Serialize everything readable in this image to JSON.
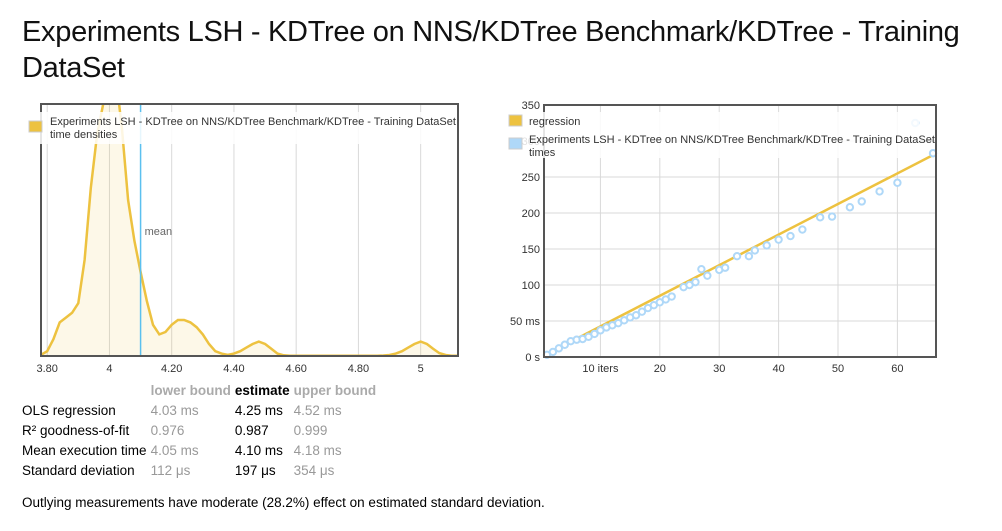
{
  "page": {
    "title": "Experiments LSH - KDTree on NNS/KDTree Benchmark/KDTree - Training DataSet",
    "note": "Outlying measurements have moderate (28.2%) effect on estimated standard deviation."
  },
  "chart_data": [
    {
      "type": "area",
      "legend": [
        "Experiments LSH - KDTree on NNS/KDTree Benchmark/KDTree - Training DataSet time densities"
      ],
      "legend_position": "top-left",
      "x_ticks": [
        "3.80",
        "4",
        "4.20",
        "4.40",
        "4.60",
        "4.80",
        "5"
      ],
      "xlim": [
        3.78,
        5.12
      ],
      "mean": 4.1,
      "mean_label": "mean",
      "x": [
        3.78,
        3.8,
        3.82,
        3.84,
        3.86,
        3.88,
        3.9,
        3.92,
        3.94,
        3.96,
        3.98,
        4.0,
        4.01,
        4.02,
        4.03,
        4.04,
        4.05,
        4.06,
        4.08,
        4.1,
        4.12,
        4.14,
        4.16,
        4.18,
        4.2,
        4.22,
        4.24,
        4.26,
        4.28,
        4.3,
        4.32,
        4.34,
        4.36,
        4.38,
        4.4,
        4.42,
        4.44,
        4.46,
        4.48,
        4.5,
        4.52,
        4.54,
        4.56,
        4.58,
        4.6,
        4.62,
        4.64,
        4.66,
        4.68,
        4.7,
        4.72,
        4.74,
        4.76,
        4.78,
        4.8,
        4.82,
        4.84,
        4.86,
        4.88,
        4.9,
        4.92,
        4.94,
        4.96,
        4.98,
        5.0,
        5.02,
        5.04,
        5.06,
        5.08,
        5.1,
        5.12
      ],
      "density": [
        0.005,
        0.02,
        0.07,
        0.14,
        0.16,
        0.18,
        0.22,
        0.4,
        0.7,
        0.92,
        1.05,
        1.12,
        1.15,
        1.13,
        1.06,
        0.95,
        0.8,
        0.65,
        0.48,
        0.35,
        0.23,
        0.13,
        0.09,
        0.1,
        0.13,
        0.15,
        0.15,
        0.14,
        0.12,
        0.09,
        0.05,
        0.02,
        0.01,
        0.005,
        0.01,
        0.02,
        0.035,
        0.05,
        0.06,
        0.05,
        0.03,
        0.01,
        0.003,
        0.001,
        0.001,
        0.001,
        0.001,
        0.001,
        0.001,
        0.001,
        0.001,
        0.001,
        0.001,
        0.001,
        0.001,
        0.001,
        0.001,
        0.001,
        0.002,
        0.004,
        0.01,
        0.02,
        0.035,
        0.05,
        0.06,
        0.05,
        0.03,
        0.012,
        0.004,
        0.001,
        0.001
      ],
      "ylim": [
        0,
        1.05
      ]
    },
    {
      "type": "scatter",
      "legend": [
        "regression",
        "Experiments LSH - KDTree on NNS/KDTree Benchmark/KDTree - Training DataSet times"
      ],
      "legend_position": "top-left",
      "x_ticks": [
        "10 iters",
        "20",
        "30",
        "40",
        "50",
        "60"
      ],
      "y_ticks": [
        "0 s",
        "50 ms",
        "100",
        "150",
        "200",
        "250",
        "300",
        "350"
      ],
      "xlim": [
        0.5,
        66.5
      ],
      "ylim": [
        0,
        350
      ],
      "regression_slope_ms": 4.25,
      "x": [
        1,
        2,
        3,
        4,
        5,
        6,
        7,
        8,
        9,
        10,
        11,
        12,
        13,
        14,
        15,
        16,
        17,
        18,
        19,
        20,
        21,
        22,
        24,
        25,
        26,
        27,
        28,
        30,
        31,
        33,
        35,
        36,
        38,
        40,
        42,
        44,
        47,
        49,
        52,
        54,
        57,
        60,
        63,
        66
      ],
      "y": [
        3,
        7,
        12,
        17,
        22,
        24,
        25,
        28,
        32,
        37,
        41,
        44,
        47,
        51,
        55,
        58,
        63,
        68,
        72,
        76,
        80,
        84,
        97,
        100,
        104,
        122,
        113,
        121,
        124,
        140,
        140,
        148,
        155,
        163,
        168,
        177,
        194,
        195,
        208,
        216,
        230,
        242,
        325,
        283
      ]
    }
  ],
  "stats": {
    "headers": [
      "lower bound",
      "estimate",
      "upper bound"
    ],
    "rows": [
      {
        "label": "OLS regression",
        "lo": "4.03 ms",
        "est": "4.25 ms",
        "hi": "4.52 ms"
      },
      {
        "label": "R² goodness-of-fit",
        "lo": "0.976",
        "est": "0.987",
        "hi": "0.999"
      },
      {
        "label": "Mean execution time",
        "lo": "4.05 ms",
        "est": "4.10 ms",
        "hi": "4.18 ms"
      },
      {
        "label": "Standard deviation",
        "lo": "112 μs",
        "est": "197 μs",
        "hi": "354 μs"
      }
    ]
  },
  "colors": {
    "density": "#edc240",
    "points": "#afd8f8",
    "mean_line": "#5bc0ef",
    "grid": "#d9d9d9"
  }
}
